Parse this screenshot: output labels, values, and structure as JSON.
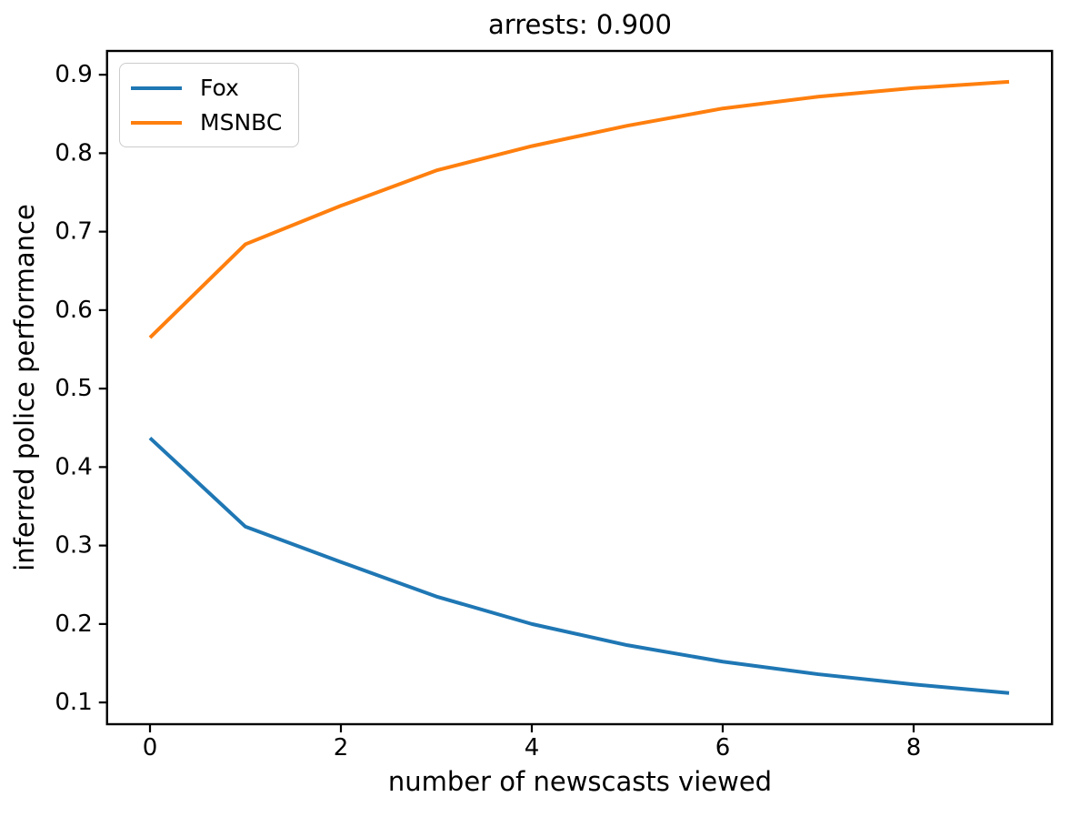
{
  "title": "arrests: 0.900",
  "chart_data": {
    "type": "line",
    "title": "arrests: 0.900",
    "xlabel": "number of newscasts viewed",
    "ylabel": "inferred police performance",
    "x": [
      0,
      1,
      2,
      3,
      4,
      5,
      6,
      7,
      8,
      9
    ],
    "series": [
      {
        "name": "Fox",
        "color": "#1f77b4",
        "values": [
          0.437,
          0.324,
          0.279,
          0.235,
          0.2,
          0.173,
          0.152,
          0.136,
          0.123,
          0.112
        ]
      },
      {
        "name": "MSNBC",
        "color": "#ff7f0e",
        "values": [
          0.565,
          0.684,
          0.733,
          0.778,
          0.809,
          0.835,
          0.857,
          0.872,
          0.883,
          0.891
        ]
      }
    ],
    "xticks": [
      0,
      2,
      4,
      6,
      8
    ],
    "yticks": [
      0.1,
      0.2,
      0.3,
      0.4,
      0.5,
      0.6,
      0.7,
      0.8,
      0.9
    ],
    "xlim": [
      -0.45,
      9.45
    ],
    "ylim": [
      0.0723,
      0.9303
    ],
    "grid": false,
    "legend": {
      "position": "upper left",
      "entries": [
        "Fox",
        "MSNBC"
      ]
    },
    "spine_color": "#000000",
    "background_color": "#ffffff"
  }
}
